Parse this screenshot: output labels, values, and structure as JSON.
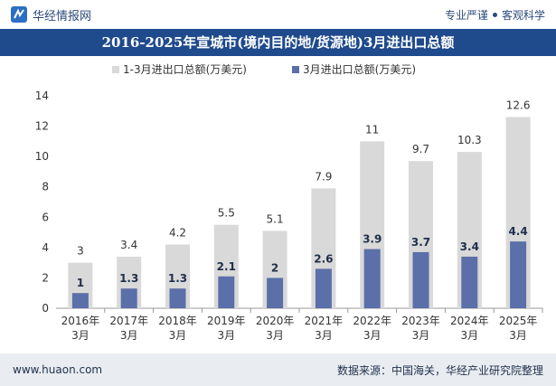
{
  "header": {
    "site_name": "华经情报网",
    "tag_left": "专业严谨",
    "tag_right": "客观科学"
  },
  "colors": {
    "brand": "#1f4a8c",
    "series_total": "#d9d9d9",
    "series_march": "#5b6fa8",
    "footer_bg": "#e9edf2"
  },
  "chart_data": {
    "type": "bar",
    "title": "2016-2025年宣城市(境内目的地/货源地)3月进出口总额",
    "categories": [
      "2016年\n3月",
      "2017年\n3月",
      "2018年\n3月",
      "2019年\n3月",
      "2020年\n3月",
      "2021年\n3月",
      "2022年\n3月",
      "2023年\n3月",
      "2024年\n3月",
      "2025年\n3月"
    ],
    "series": [
      {
        "name": "1-3月进出口总额(万美元)",
        "values": [
          3,
          3.4,
          4.2,
          5.5,
          5.1,
          7.9,
          11,
          9.7,
          10.3,
          12.6
        ]
      },
      {
        "name": "3月进出口总额(万美元)",
        "values": [
          1,
          1.3,
          1.3,
          2.1,
          2,
          2.6,
          3.9,
          3.7,
          3.4,
          4.4
        ]
      }
    ],
    "ylim": [
      0,
      14
    ],
    "yticks": [
      0,
      2,
      4,
      6,
      8,
      10,
      12,
      14
    ],
    "grid": false,
    "legend_position": "top-left"
  },
  "footer": {
    "website": "www.huaon.com",
    "source": "数据来源：中国海关，华经产业研究院整理"
  }
}
